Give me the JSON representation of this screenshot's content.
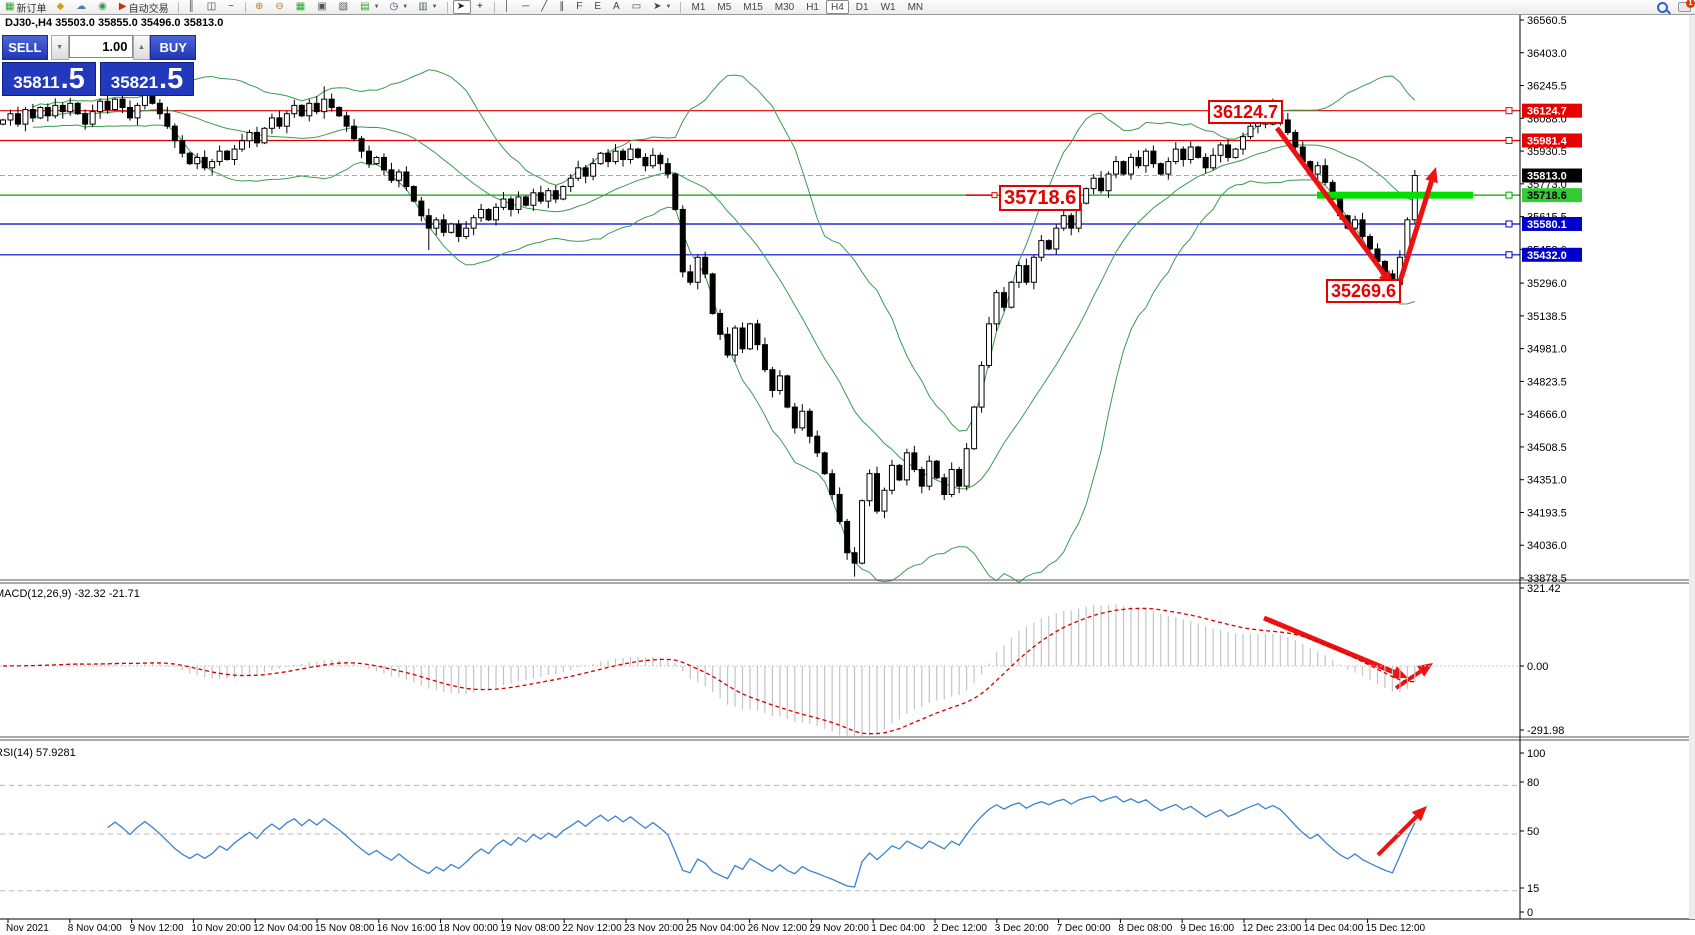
{
  "toolbar": {
    "buttons": [
      {
        "name": "new-order-button",
        "glyph": "▦",
        "color": "#2aa52a",
        "label": "新订单"
      },
      {
        "name": "market-watch-button",
        "glyph": "◆",
        "color": "#d4a017"
      },
      {
        "name": "navigator-button",
        "glyph": "☁",
        "color": "#4a7ebb"
      },
      {
        "name": "signals-button",
        "glyph": "◉",
        "color": "#3a9a3a"
      },
      {
        "name": "autotrading-button",
        "glyph": "▶",
        "color": "#cc3300",
        "label": "自动交易"
      },
      {
        "type": "sep"
      },
      {
        "name": "bar-chart-button",
        "glyph": "║",
        "color": "#444"
      },
      {
        "name": "candlestick-chart-button",
        "glyph": "◫",
        "color": "#444"
      },
      {
        "name": "line-chart-button",
        "glyph": "~",
        "color": "#444"
      },
      {
        "type": "sep"
      },
      {
        "name": "zoom-in-button",
        "glyph": "⊕",
        "color": "#b08020"
      },
      {
        "name": "zoom-out-button",
        "glyph": "⊖",
        "color": "#b08020"
      },
      {
        "name": "tile-windows-button",
        "glyph": "▦",
        "color": "#2aa52a"
      },
      {
        "name": "arrange-windows-button",
        "glyph": "▣",
        "color": "#555"
      },
      {
        "name": "cascade-windows-button",
        "glyph": "▧",
        "color": "#555"
      },
      {
        "name": "add-indicator-button",
        "glyph": "▤",
        "color": "#2aa52a",
        "dropdown": true
      },
      {
        "name": "period-button",
        "glyph": "◷",
        "color": "#446",
        "dropdown": true
      },
      {
        "name": "template-button",
        "glyph": "▥",
        "color": "#565",
        "dropdown": true
      },
      {
        "type": "sep"
      },
      {
        "name": "cursor-button",
        "glyph": "➤",
        "color": "#222",
        "active": true
      },
      {
        "name": "crosshair-button",
        "glyph": "+",
        "color": "#222"
      },
      {
        "type": "sep"
      },
      {
        "name": "vertical-line-button",
        "glyph": "│",
        "color": "#444"
      },
      {
        "name": "horizontal-line-button",
        "glyph": "─",
        "color": "#444"
      },
      {
        "name": "trendline-button",
        "glyph": "╱",
        "color": "#444"
      },
      {
        "name": "channel-button",
        "glyph": "∥",
        "color": "#444"
      },
      {
        "name": "fibonacci-button",
        "glyph": "F",
        "color": "#444"
      },
      {
        "name": "andrews-button",
        "glyph": "E",
        "color": "#444"
      },
      {
        "name": "text-button",
        "glyph": "A",
        "color": "#444"
      },
      {
        "name": "label-button",
        "glyph": "▭",
        "color": "#444"
      },
      {
        "name": "arrows-button",
        "glyph": "➤",
        "color": "#444",
        "dropdown": true
      },
      {
        "type": "sep"
      }
    ],
    "timeframes": [
      "M1",
      "M5",
      "M15",
      "M30",
      "H1",
      "H4",
      "D1",
      "W1",
      "MN"
    ],
    "active_timeframe": "H4",
    "chat_badge": "1"
  },
  "chart_header": {
    "title": "DJ30-,H4  35503.0 35855.0 35496.0 35813.0"
  },
  "order_panel": {
    "sell_label": "SELL",
    "buy_label": "BUY",
    "volume": "1.00",
    "spin_down": "▼",
    "spin_up": "▲",
    "sell_price_main": "35811",
    "sell_price_pip": ".5",
    "buy_price_main": "35821",
    "buy_price_pip": ".5"
  },
  "indicators": {
    "macd_label": "MACD(12,26,9) -32.32 -21.71",
    "rsi_label": "RSI(14) 57.9281"
  },
  "chart_data": {
    "type": "candlestick",
    "symbol": "DJ30-",
    "timeframe": "H4",
    "current_ohlc": {
      "open": 35503.0,
      "high": 35855.0,
      "low": 35496.0,
      "close": 35813.0
    },
    "ylim": [
      33878.5,
      36560.5
    ],
    "price_axis_ticks": [
      "36560.5",
      "36403.0",
      "36245.5",
      "36088.0",
      "35930.5",
      "35773.0",
      "35615.5",
      "35458.0",
      "35296.0",
      "35138.5",
      "34981.0",
      "34823.5",
      "34666.0",
      "34508.5",
      "34351.0",
      "34193.5",
      "34036.0",
      "33878.5"
    ],
    "price_axis_tick_values": [
      36560.5,
      36403.0,
      36245.5,
      36088.0,
      35930.5,
      35773.0,
      35615.5,
      35458.0,
      35296.0,
      35138.5,
      34981.0,
      34823.5,
      34666.0,
      34508.5,
      34351.0,
      34193.5,
      34036.0,
      33878.5
    ],
    "closes": [
      36080,
      36110,
      36060,
      36130,
      36090,
      36140,
      36100,
      36150,
      36120,
      36160,
      36110,
      36060,
      36120,
      36170,
      36130,
      36180,
      36140,
      36090,
      36150,
      36200,
      36160,
      36110,
      36050,
      35980,
      35920,
      35870,
      35900,
      35850,
      35880,
      35930,
      35890,
      35940,
      35980,
      36020,
      35970,
      36040,
      36090,
      36050,
      36110,
      36150,
      36100,
      36160,
      36120,
      36180,
      36140,
      36100,
      36050,
      35990,
      35930,
      35870,
      35900,
      35840,
      35790,
      35830,
      35760,
      35690,
      35620,
      35560,
      35600,
      35540,
      35580,
      35520,
      35560,
      35610,
      35650,
      35600,
      35660,
      35700,
      35650,
      35710,
      35670,
      35730,
      35690,
      35740,
      35700,
      35760,
      35800,
      35850,
      35810,
      35870,
      35920,
      35880,
      35930,
      35890,
      35940,
      35900,
      35860,
      35910,
      35870,
      35820,
      35650,
      35350,
      35300,
      35420,
      35340,
      35150,
      35050,
      34950,
      35080,
      34980,
      35100,
      35000,
      34880,
      34780,
      34850,
      34700,
      34600,
      34680,
      34560,
      34480,
      34380,
      34280,
      34150,
      34000,
      33950,
      34250,
      34380,
      34200,
      34300,
      34420,
      34350,
      34480,
      34400,
      34320,
      34440,
      34360,
      34280,
      34400,
      34320,
      34500,
      34700,
      34900,
      35100,
      35250,
      35180,
      35300,
      35380,
      35300,
      35420,
      35500,
      35460,
      35560,
      35620,
      35560,
      35680,
      35750,
      35800,
      35740,
      35820,
      35880,
      35820,
      35900,
      35860,
      35930,
      35870,
      35820,
      35880,
      35940,
      35890,
      35950,
      35900,
      35850,
      35910,
      35960,
      35900,
      35940,
      36000,
      36050,
      36100,
      36060,
      36110,
      36080,
      36020,
      35950,
      35880,
      35820,
      35860,
      35780,
      35700,
      35620,
      35560,
      35600,
      35520,
      35460,
      35400,
      35340,
      35290,
      35420,
      35600,
      35813
    ],
    "wick_overrides": {
      "19": {
        "high": 36235
      },
      "43": {
        "high": 36242
      },
      "57": {
        "low": 35455
      },
      "114": {
        "low": 33885
      },
      "170": {
        "high": 36183
      },
      "186": {
        "low": 35269.6
      }
    },
    "hlines": [
      {
        "value": 36124.7,
        "color": "#e00000"
      },
      {
        "value": 35981.4,
        "color": "#e00000"
      },
      {
        "value": 35718.6,
        "color": "#00a800"
      },
      {
        "value": 35580.1,
        "color": "#0000d0"
      },
      {
        "value": 35432.0,
        "color": "#0000d0"
      }
    ],
    "current_price": 35813.0,
    "axis_badges": [
      {
        "text": "36124.7",
        "value": 36124.7,
        "bg": "#e80000",
        "fg": "#ffffff"
      },
      {
        "text": "35981.4",
        "value": 35981.4,
        "bg": "#e80000",
        "fg": "#ffffff"
      },
      {
        "text": "35813.0",
        "value": 35813.0,
        "bg": "#000000",
        "fg": "#ffffff"
      },
      {
        "text": "35718.6",
        "value": 35718.6,
        "bg": "#33cc33",
        "fg": "#000000"
      },
      {
        "text": "35580.1",
        "value": 35580.1,
        "bg": "#0000cc",
        "fg": "#ffffff"
      },
      {
        "text": "35432.0",
        "value": 35432.0,
        "bg": "#0000cc",
        "fg": "#ffffff"
      }
    ],
    "bollinger": {
      "period": 20,
      "deviation": 2,
      "color": "#3c9b50"
    },
    "macd": {
      "fast": 12,
      "slow": 26,
      "signal": 9,
      "main_value": -32.32,
      "signal_value": -21.71,
      "scale_labels": [
        "321.42",
        "0.00",
        "-291.98"
      ],
      "hist_color": "#c4c4c4",
      "signal_color": "#d40000"
    },
    "rsi": {
      "period": 14,
      "value": 57.9281,
      "levels": [
        "100",
        "80",
        "50",
        "15",
        "0"
      ],
      "dashed_levels": [
        80,
        50,
        15
      ],
      "color": "#3b82d0"
    },
    "green_zone_value": 35718.6,
    "annotations": [
      {
        "text": "36124.7"
      },
      {
        "text": "35718.6"
      },
      {
        "text": "35269.6"
      }
    ],
    "time_ticks": [
      "Nov 2021",
      "8 Nov 04:00",
      "9 Nov 12:00",
      "10 Nov 20:00",
      "12 Nov 04:00",
      "15 Nov 08:00",
      "16 Nov 16:00",
      "18 Nov 00:00",
      "19 Nov 08:00",
      "22 Nov 12:00",
      "23 Nov 20:00",
      "25 Nov 04:00",
      "26 Nov 12:00",
      "29 Nov 20:00",
      "1 Dec 04:00",
      "2 Dec 12:00",
      "3 Dec 20:00",
      "7 Dec 00:00",
      "8 Dec 08:00",
      "9 Dec 16:00",
      "12 Dec 23:00",
      "14 Dec 04:00",
      "15 Dec 12:00"
    ]
  }
}
